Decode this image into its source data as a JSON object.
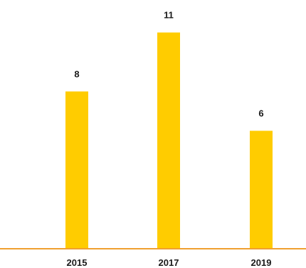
{
  "chart_data": {
    "type": "bar",
    "categories": [
      "2015",
      "2017",
      "2019"
    ],
    "values": [
      8,
      11,
      6
    ],
    "ylim": [
      0,
      12
    ],
    "grid": false,
    "legend": "none",
    "colors": {
      "bar": "#FFCC00",
      "axis": "#F0A030",
      "text": "#1a1a1a"
    }
  }
}
